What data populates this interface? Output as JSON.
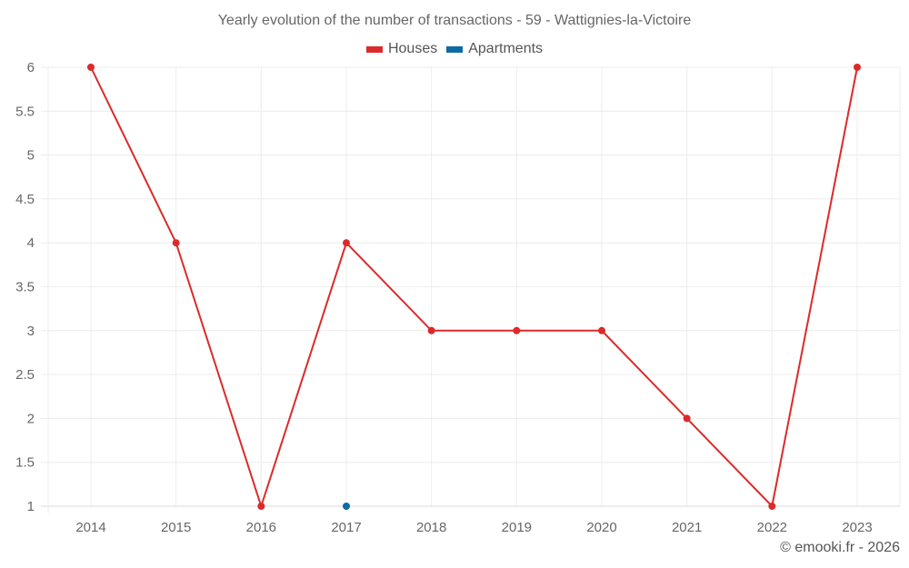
{
  "header": {
    "title": "Yearly evolution of the number of transactions - 59 - Wattignies-la-Victoire"
  },
  "legend": [
    {
      "label": "Houses",
      "color": "#dc2a2a"
    },
    {
      "label": "Apartments",
      "color": "#0e6aa3"
    }
  ],
  "footer": {
    "credit": "© emooki.fr - 2026"
  },
  "chart_data": {
    "type": "line",
    "title": "Yearly evolution of the number of transactions - 59 - Wattignies-la-Victoire",
    "xlabel": "",
    "ylabel": "",
    "categories": [
      "2014",
      "2015",
      "2016",
      "2017",
      "2018",
      "2019",
      "2020",
      "2021",
      "2022",
      "2023"
    ],
    "series": [
      {
        "name": "Houses",
        "color": "#dc2a2a",
        "values": [
          6,
          4,
          1,
          4,
          3,
          3,
          3,
          2,
          1,
          6
        ]
      },
      {
        "name": "Apartments",
        "color": "#0e6aa3",
        "values": [
          null,
          null,
          null,
          1,
          null,
          null,
          null,
          null,
          null,
          null
        ]
      }
    ],
    "yticks": [
      "1",
      "1.5",
      "2",
      "2.5",
      "3",
      "3.5",
      "4",
      "4.5",
      "5",
      "5.5",
      "6"
    ],
    "ylim": [
      1,
      6
    ],
    "grid": true,
    "legend_position": "top"
  }
}
